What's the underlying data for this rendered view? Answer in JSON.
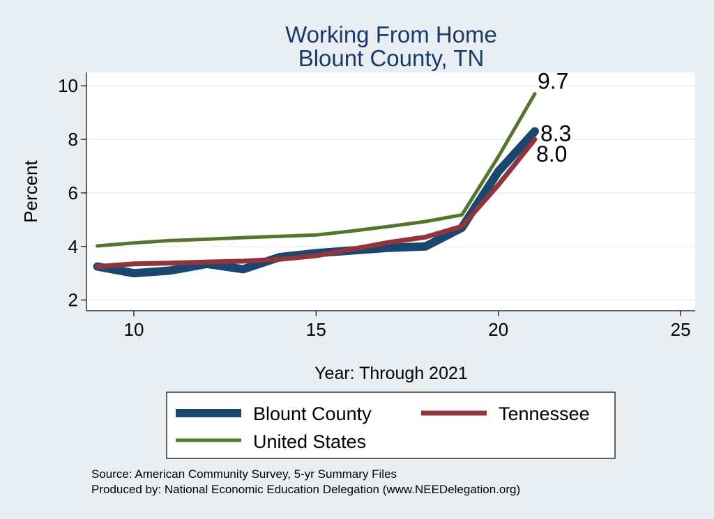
{
  "chart_data": {
    "type": "line",
    "title": "Working From Home",
    "subtitle": "Blount County, TN",
    "xlabel": "Year: Through 2021",
    "ylabel": "Percent",
    "xlim": [
      8.7,
      25.4
    ],
    "ylim": [
      1.6,
      10.5
    ],
    "xticks": [
      10,
      15,
      20,
      25
    ],
    "yticks": [
      2,
      4,
      6,
      8,
      10
    ],
    "grid": true,
    "legend_position": "bottom",
    "x": [
      9,
      10,
      11,
      12,
      13,
      14,
      15,
      16,
      17,
      18,
      19,
      20,
      21
    ],
    "series": [
      {
        "name": "Blount County",
        "color": "#1a476f",
        "values": [
          3.25,
          3.0,
          3.1,
          3.35,
          3.15,
          3.6,
          3.75,
          3.85,
          3.95,
          4.0,
          4.7,
          6.8,
          8.3
        ],
        "end_label": "8.3"
      },
      {
        "name": "Tennessee",
        "color": "#90353b",
        "values": [
          3.25,
          3.35,
          3.38,
          3.42,
          3.45,
          3.52,
          3.65,
          3.9,
          4.15,
          4.35,
          4.75,
          6.3,
          8.0
        ],
        "end_label": "8.0"
      },
      {
        "name": "United States",
        "color": "#55752f",
        "values": [
          4.02,
          4.13,
          4.22,
          4.27,
          4.33,
          4.38,
          4.43,
          4.58,
          4.75,
          4.93,
          5.18,
          7.35,
          9.7
        ],
        "end_label": "9.7"
      }
    ],
    "notes": [
      "Source: American Community Survey, 5-yr Summary Files",
      "Produced by: National Economic Education Delegation (www.NEEDelegation.org)"
    ]
  }
}
